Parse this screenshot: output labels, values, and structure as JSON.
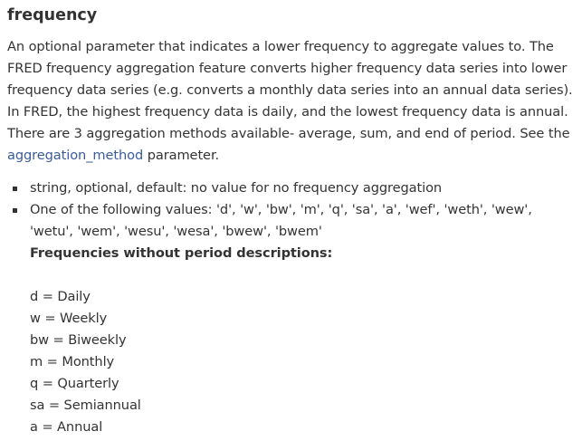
{
  "heading": "frequency",
  "description": {
    "before_link": "An optional parameter that indicates a lower frequency to aggregate values to. The FRED frequency aggregation feature converts higher frequency data series into lower frequency data series (e.g. converts a monthly data series into an annual data series). In FRED, the highest frequency data is daily, and the lowest frequency data is annual. There are 3 aggregation methods available- average, sum, and end of period. See the ",
    "link_text": "aggregation_method",
    "after_link": " parameter."
  },
  "bullets": {
    "type_info": "string, optional, default: no value for no frequency aggregation",
    "values_intro": "One of the following values: 'd', 'w', 'bw', 'm', 'q', 'sa', 'a', 'wef', 'weth', 'wew', 'wetu', 'wem', 'wesu', 'wesa', 'bwew', 'bwem'",
    "subheading": "Frequencies without period descriptions:",
    "frequencies": [
      "d = Daily",
      "w = Weekly",
      "bw = Biweekly",
      "m = Monthly",
      "q = Quarterly",
      "sa = Semiannual",
      "a = Annual"
    ]
  },
  "colors": {
    "text": "#333333",
    "link": "#3b5c9a",
    "background": "#ffffff"
  }
}
